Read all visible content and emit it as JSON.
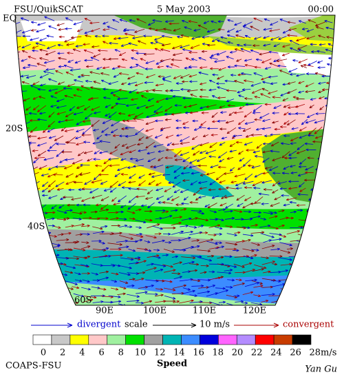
{
  "header": {
    "title": "FSU/QuikSCAT",
    "date": "5 May 2003",
    "time": "00:00"
  },
  "map": {
    "lat_labels": [
      "EQ",
      "20S",
      "40S",
      "60S"
    ],
    "lon_labels": [
      "90E",
      "100E",
      "110E",
      "120E"
    ]
  },
  "legend": {
    "divergent": "divergent",
    "scale": "scale",
    "scale_value": "10 m/s",
    "convergent": "convergent"
  },
  "colorbar": {
    "ticks": [
      0,
      2,
      4,
      6,
      8,
      10,
      12,
      14,
      16,
      18,
      20,
      22,
      24,
      26,
      28
    ],
    "unit": "m/s",
    "label": "Speed",
    "colors": [
      "#ffffff",
      "#c8c8c8",
      "#ffff00",
      "#ffc8c8",
      "#a0f0a0",
      "#00e000",
      "#a0a0a0",
      "#00b4b4",
      "#3c8cff",
      "#0000dc",
      "#ff64ff",
      "#b48cff",
      "#ff0000",
      "#c83c00",
      "#000000"
    ]
  },
  "footer": {
    "org": "COAPS-FSU",
    "author": "Yan Gu"
  }
}
